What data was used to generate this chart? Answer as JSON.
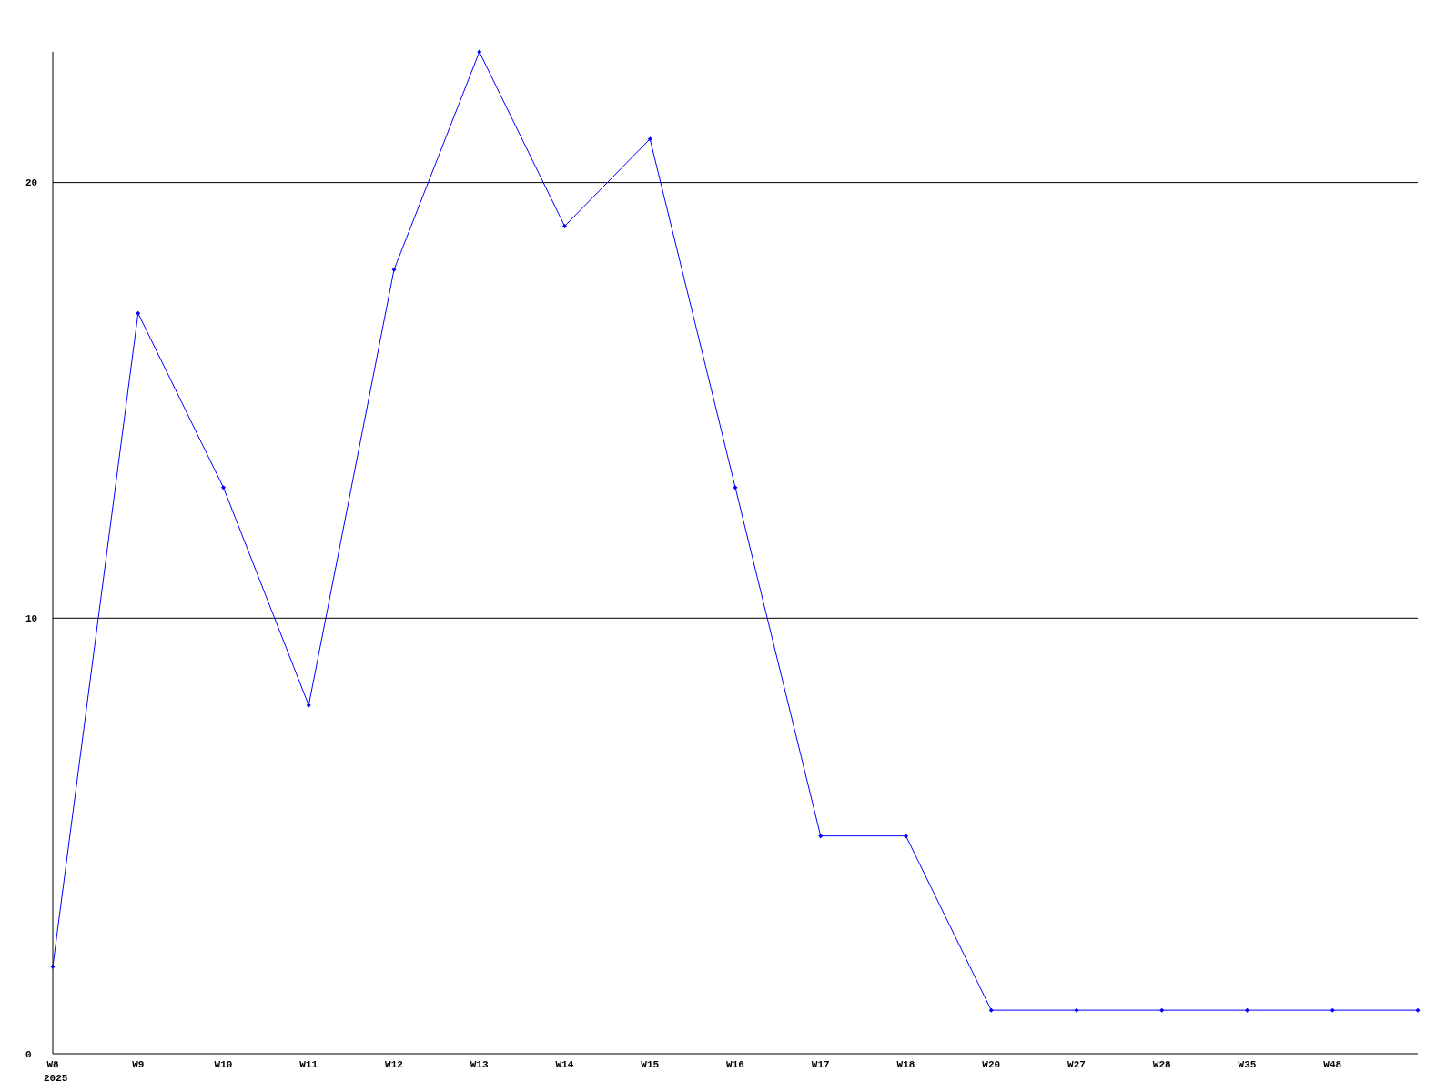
{
  "chart_data": {
    "type": "line",
    "categories": [
      "W8",
      "W9",
      "W10",
      "W11",
      "W12",
      "W13",
      "W14",
      "W15",
      "W16",
      "W17",
      "W18",
      "W20",
      "W27",
      "W28",
      "W35",
      "W48",
      null
    ],
    "series": [
      {
        "color": "#0000ff",
        "values": [
          2,
          17,
          13,
          8,
          18,
          23,
          19,
          21,
          13,
          5,
          5,
          1,
          1,
          1,
          1,
          1,
          1
        ]
      }
    ],
    "ylim": [
      0,
      23
    ],
    "yticks": [
      0,
      10,
      20
    ],
    "grid": "y",
    "marker": "diamond",
    "line_style": "solid",
    "annotations": [
      "2025"
    ]
  }
}
